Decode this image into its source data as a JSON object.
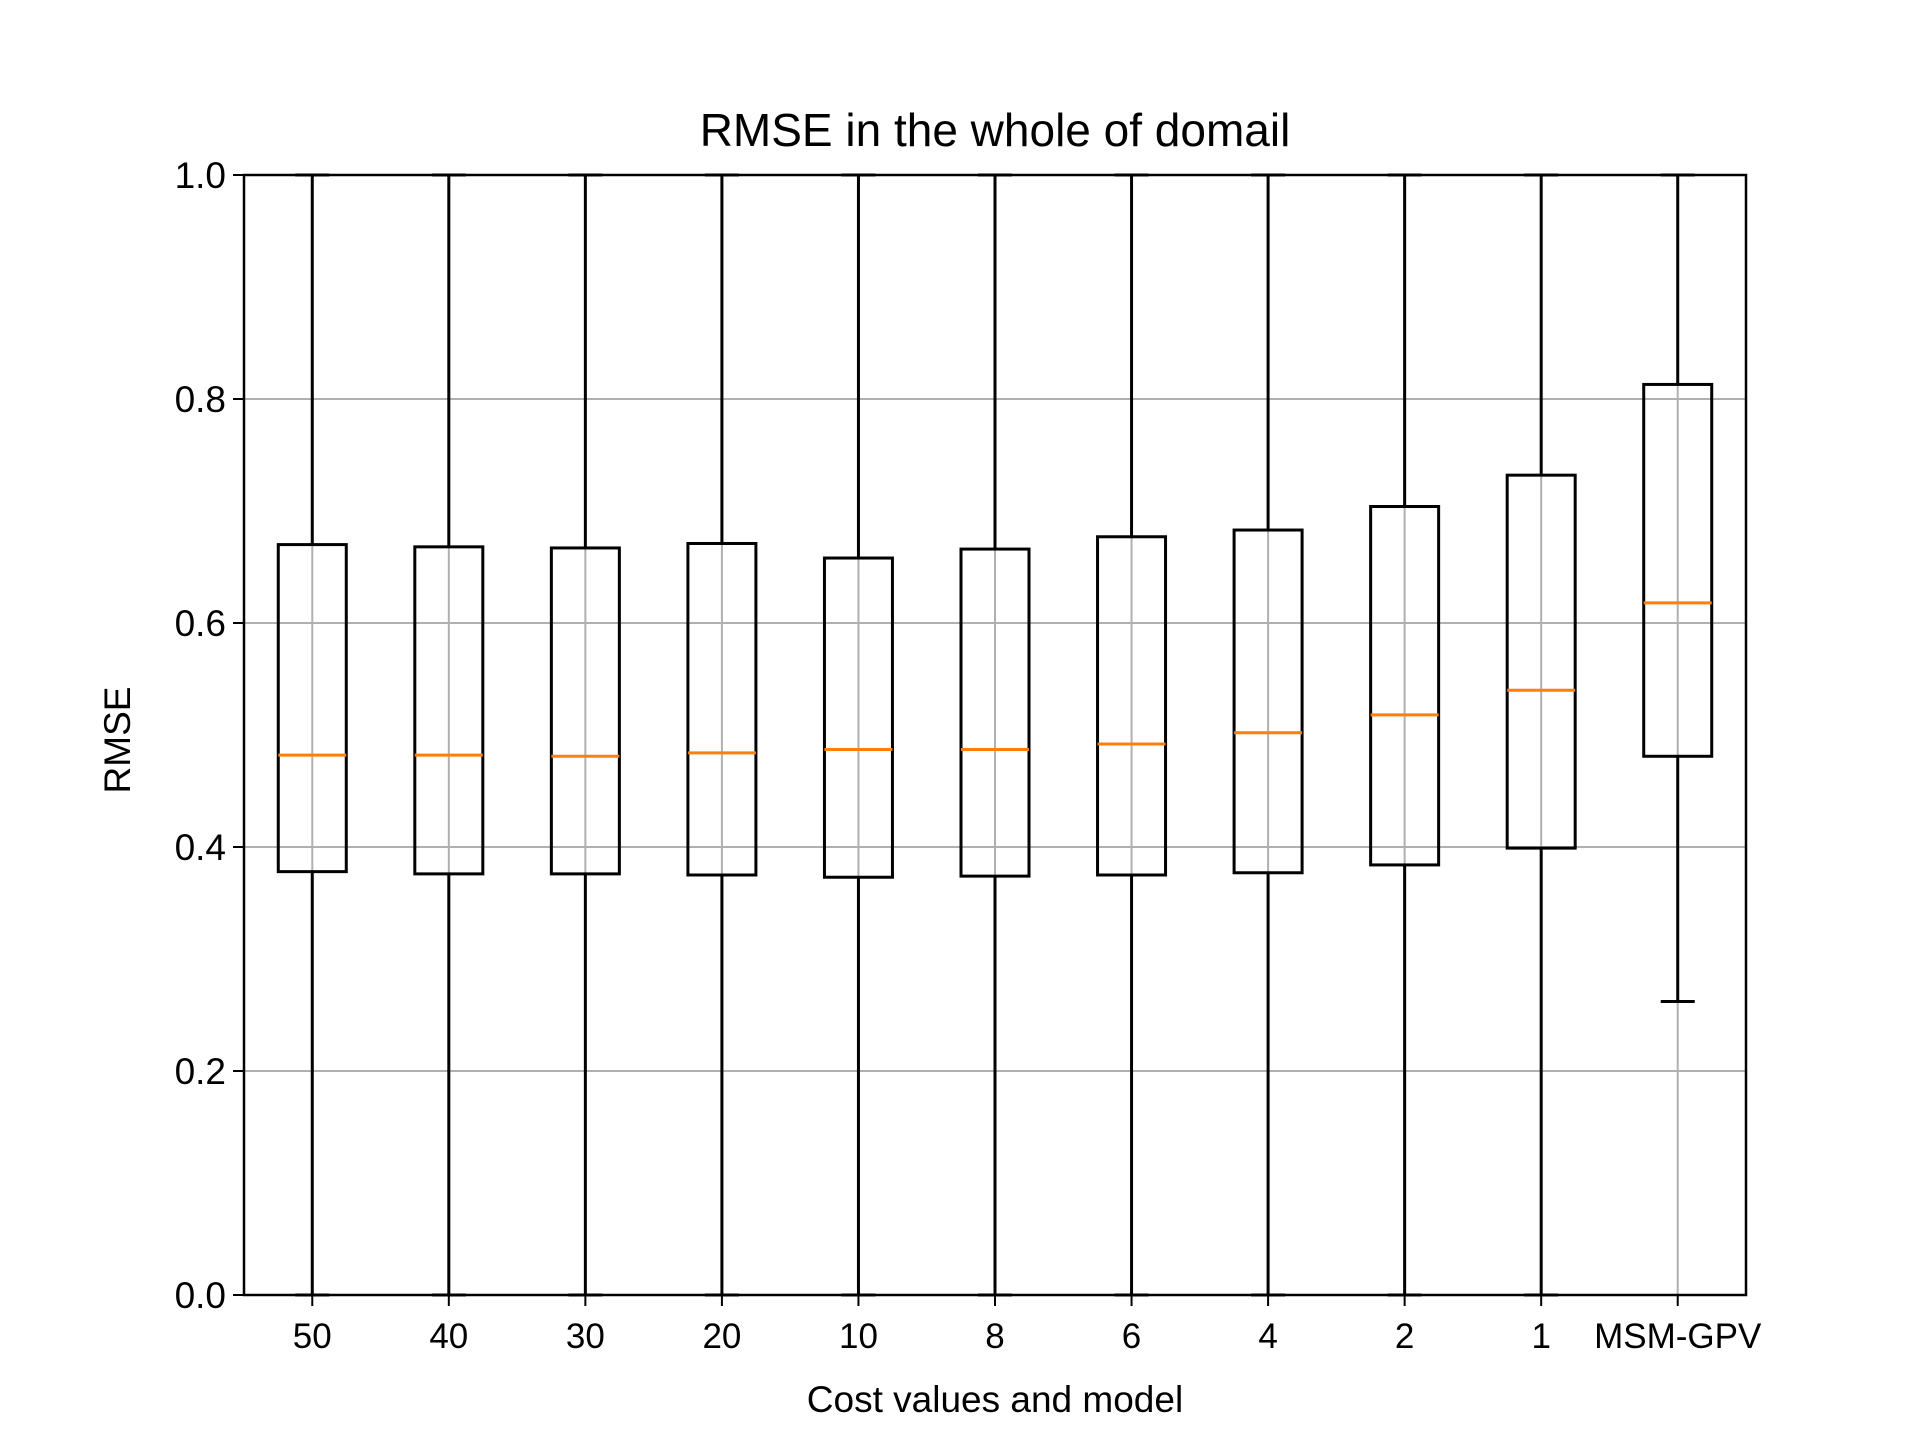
{
  "chart_data": {
    "type": "box",
    "title": "RMSE in the whole of domail",
    "xlabel": "Cost values and model",
    "ylabel": "RMSE",
    "ylim": [
      0.0,
      1.0
    ],
    "yticks": [
      "0.0",
      "0.2",
      "0.4",
      "0.6",
      "0.8",
      "1.0"
    ],
    "grid": true,
    "categories": [
      "50",
      "40",
      "30",
      "20",
      "10",
      "8",
      "6",
      "4",
      "2",
      "1",
      "MSM-GPV"
    ],
    "boxes": [
      {
        "label": "50",
        "whisker_low": 0.0,
        "q1": 0.378,
        "median": 0.482,
        "q3": 0.67,
        "whisker_high": 1.0
      },
      {
        "label": "40",
        "whisker_low": 0.0,
        "q1": 0.376,
        "median": 0.482,
        "q3": 0.668,
        "whisker_high": 1.0
      },
      {
        "label": "30",
        "whisker_low": 0.0,
        "q1": 0.376,
        "median": 0.481,
        "q3": 0.667,
        "whisker_high": 1.0
      },
      {
        "label": "20",
        "whisker_low": 0.0,
        "q1": 0.375,
        "median": 0.484,
        "q3": 0.671,
        "whisker_high": 1.0
      },
      {
        "label": "10",
        "whisker_low": 0.0,
        "q1": 0.373,
        "median": 0.487,
        "q3": 0.658,
        "whisker_high": 1.0
      },
      {
        "label": "8",
        "whisker_low": 0.0,
        "q1": 0.374,
        "median": 0.487,
        "q3": 0.666,
        "whisker_high": 1.0
      },
      {
        "label": "6",
        "whisker_low": 0.0,
        "q1": 0.375,
        "median": 0.492,
        "q3": 0.677,
        "whisker_high": 1.0
      },
      {
        "label": "4",
        "whisker_low": 0.0,
        "q1": 0.377,
        "median": 0.502,
        "q3": 0.683,
        "whisker_high": 1.0
      },
      {
        "label": "2",
        "whisker_low": 0.0,
        "q1": 0.384,
        "median": 0.518,
        "q3": 0.704,
        "whisker_high": 1.0
      },
      {
        "label": "1",
        "whisker_low": 0.0,
        "q1": 0.399,
        "median": 0.54,
        "q3": 0.732,
        "whisker_high": 1.0
      },
      {
        "label": "MSM-GPV",
        "whisker_low": 0.262,
        "q1": 0.481,
        "median": 0.618,
        "q3": 0.813,
        "whisker_high": 1.0
      }
    ],
    "colors": {
      "box": "#000000",
      "median": "#ff7f0e",
      "grid": "#b0b0b0"
    }
  }
}
